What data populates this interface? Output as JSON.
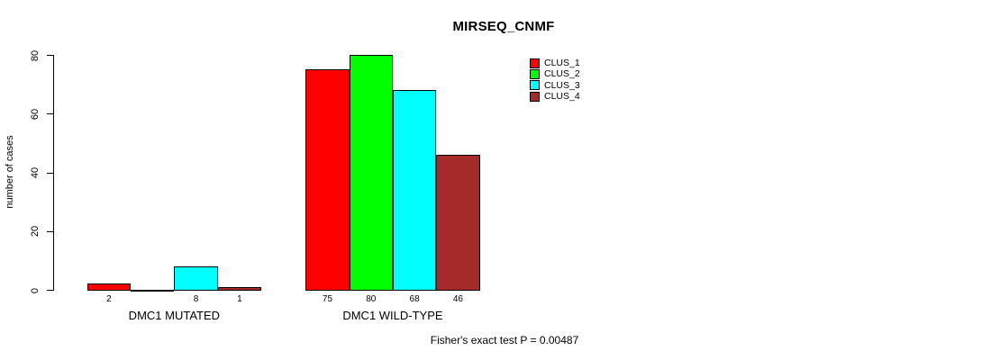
{
  "chart_data": {
    "type": "bar",
    "title": "MIRSEQ_CNMF",
    "ylabel": "number of cases",
    "xlabel": "",
    "footnote": "Fisher's exact test P = 0.00487",
    "categories": [
      "DMC1 MUTATED",
      "DMC1 WILD-TYPE"
    ],
    "series": [
      {
        "name": "CLUS_1",
        "color": "#ff0000",
        "values": [
          2,
          75
        ]
      },
      {
        "name": "CLUS_2",
        "color": "#00ff00",
        "values": [
          0,
          80
        ]
      },
      {
        "name": "CLUS_3",
        "color": "#00ffff",
        "values": [
          8,
          68
        ]
      },
      {
        "name": "CLUS_4",
        "color": "#a52a2a",
        "values": [
          1,
          46
        ]
      }
    ],
    "bar_value_labels": [
      [
        "2",
        "",
        "8",
        "1"
      ],
      [
        "75",
        "80",
        "68",
        "46"
      ]
    ],
    "yticks": [
      0,
      20,
      40,
      60,
      80
    ],
    "ylim": [
      0,
      80
    ],
    "grid": false,
    "legend_position": "right",
    "axis_color": "#000000",
    "text_color": "#000000",
    "background_color": "#ffffff"
  }
}
